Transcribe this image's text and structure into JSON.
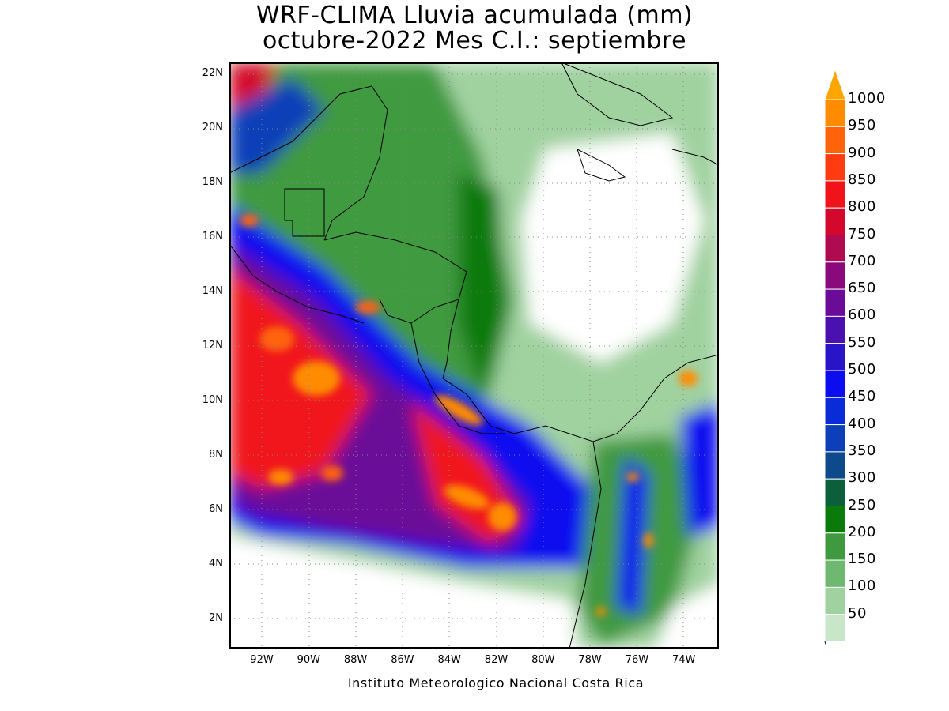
{
  "title": {
    "line1": "WRF-CLIMA Lluvia acumulada (mm)",
    "line2": "octubre-2022 Mes C.I.: septiembre"
  },
  "credit": "Instituto Meteorologico Nacional Costa Rica",
  "map": {
    "lat_labels": [
      "22N",
      "20N",
      "18N",
      "16N",
      "14N",
      "12N",
      "10N",
      "8N",
      "6N",
      "4N",
      "2N"
    ],
    "lon_labels": [
      "92W",
      "90W",
      "88W",
      "86W",
      "84W",
      "82W",
      "80W",
      "78W",
      "76W",
      "74W"
    ],
    "lat_range": [
      1,
      22.5
    ],
    "lon_range": [
      -93.0,
      -72.5
    ]
  },
  "colorbar": {
    "levels": [
      "50",
      "100",
      "150",
      "200",
      "250",
      "300",
      "350",
      "400",
      "450",
      "500",
      "550",
      "600",
      "650",
      "700",
      "750",
      "800",
      "850",
      "900",
      "950",
      "1000"
    ],
    "colors": [
      "#c8e6c8",
      "#a0d2a0",
      "#6fb86f",
      "#3f9a3f",
      "#0a7a0a",
      "#0b5f3a",
      "#0d4a8c",
      "#0c3fb8",
      "#0a2bd8",
      "#0c0cf0",
      "#2a14c8",
      "#4a10b0",
      "#6a0c98",
      "#8a0a7c",
      "#b00a50",
      "#d4082c",
      "#f0141a",
      "#ff3c10",
      "#ff640a",
      "#ff8c00"
    ],
    "arrow_color": "#ffa500"
  }
}
